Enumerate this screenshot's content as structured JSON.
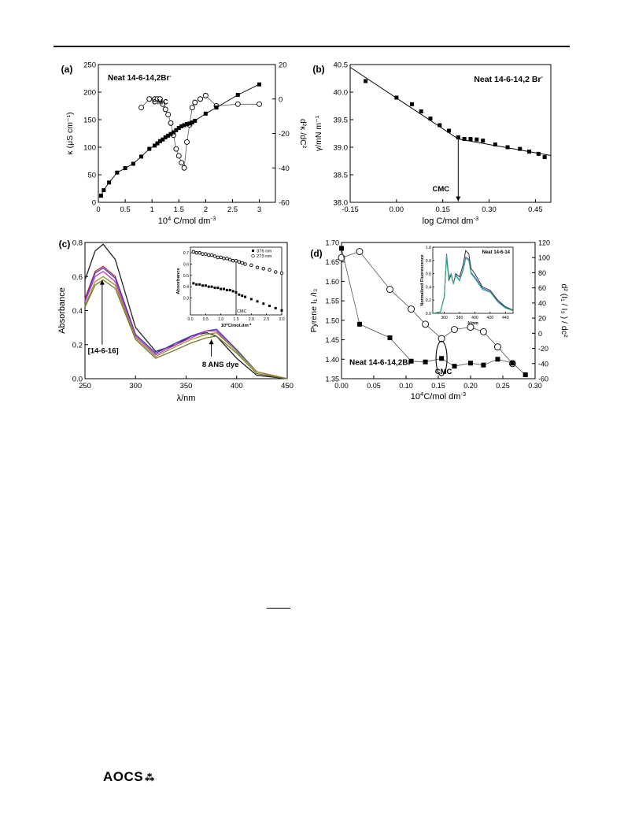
{
  "footer": {
    "logo_text": "AOCS",
    "logo_mark": "⁂"
  },
  "chart_data": [
    {
      "panel": "(a)",
      "type": "line",
      "title": "Neat 14-6-14,2Br",
      "title_sup": "-",
      "annotation": "CMC",
      "xlabel": "10",
      "xlabel_sup": "4",
      "xlabel_rest": " C/mol dm",
      "xlabel_sup2": "-3",
      "ylabel_left": "κ (μS cm⁻¹)",
      "ylabel_right": "d²κ /dC²",
      "xlim": [
        0,
        3.3
      ],
      "ylim_left": [
        0,
        250
      ],
      "ylim_right": [
        -60,
        20
      ],
      "xticks": [
        0.0,
        0.5,
        1.0,
        1.5,
        2.0,
        2.5,
        3.0
      ],
      "yticks_left": [
        0,
        50,
        100,
        150,
        200,
        250
      ],
      "yticks_right": [
        -60,
        -40,
        -20,
        0,
        20
      ],
      "series": [
        {
          "marker": "filled-square",
          "axis": "left",
          "x": [
            0.05,
            0.1,
            0.2,
            0.35,
            0.5,
            0.65,
            0.8,
            0.95,
            1.05,
            1.1,
            1.15,
            1.2,
            1.25,
            1.3,
            1.35,
            1.4,
            1.45,
            1.5,
            1.55,
            1.6,
            1.65,
            1.7,
            1.75,
            1.8,
            2.0,
            2.2,
            2.6,
            3.0
          ],
          "y": [
            12,
            22,
            36,
            54,
            62,
            70,
            83,
            97,
            103,
            107,
            111,
            114,
            118,
            121,
            124,
            127,
            131,
            135,
            138,
            140,
            142,
            143,
            145,
            148,
            161,
            172,
            195,
            214
          ]
        },
        {
          "marker": "open-circle",
          "axis": "right",
          "x": [
            0.8,
            0.95,
            1.05,
            1.1,
            1.15,
            1.2,
            1.25,
            1.3,
            1.35,
            1.4,
            1.45,
            1.5,
            1.55,
            1.6,
            1.65,
            1.7,
            1.75,
            1.8,
            1.9,
            2.0,
            2.2,
            2.6,
            3.0
          ],
          "y": [
            -5,
            0,
            0,
            0,
            0,
            -3,
            -6,
            -9,
            -14,
            -21,
            -29,
            -33,
            -37,
            -40,
            -25,
            -15,
            -5,
            -2,
            0,
            2,
            -4,
            -3,
            -3
          ]
        }
      ]
    },
    {
      "panel": "(b)",
      "type": "scatter",
      "title": "Neat 14-6-14,2 Br",
      "title_sup": "-",
      "annotation": "CMC",
      "xlabel": "log C/mol dm",
      "xlabel_sup": "-3",
      "ylabel": "γ/mN m⁻¹",
      "xlim": [
        -0.15,
        0.5
      ],
      "ylim": [
        38.0,
        40.5
      ],
      "xticks": [
        -0.15,
        0.0,
        0.15,
        0.3,
        0.45
      ],
      "xtick_labels": [
        "-0.15",
        "0.00",
        "0.15",
        "0.30",
        "0.45"
      ],
      "yticks": [
        38.0,
        38.5,
        39.0,
        39.5,
        40.0,
        40.5
      ],
      "cmc_x": 0.2,
      "fit_line_1": [
        [
          -0.15,
          40.45
        ],
        [
          0.2,
          39.15
        ]
      ],
      "fit_line_2": [
        [
          0.2,
          39.15
        ],
        [
          0.5,
          38.85
        ]
      ],
      "series": [
        {
          "marker": "filled-square",
          "x": [
            -0.1,
            0.0,
            0.05,
            0.08,
            0.11,
            0.14,
            0.17,
            0.2,
            0.22,
            0.24,
            0.26,
            0.28,
            0.32,
            0.36,
            0.4,
            0.43,
            0.46,
            0.48
          ],
          "y": [
            40.2,
            39.9,
            39.78,
            39.65,
            39.52,
            39.4,
            39.3,
            39.18,
            39.15,
            39.15,
            39.14,
            39.12,
            39.05,
            39.0,
            38.97,
            38.92,
            38.88,
            38.82
          ]
        }
      ]
    },
    {
      "panel": "(c)",
      "type": "line",
      "xlabel": "λ/nm",
      "ylabel": "Absorbance",
      "xlim": [
        250,
        450
      ],
      "ylim": [
        0.0,
        0.8
      ],
      "xticks": [
        250,
        300,
        350,
        400,
        450
      ],
      "yticks": [
        0.0,
        0.2,
        0.4,
        0.6,
        0.8
      ],
      "annotations": [
        "[14-6-16]",
        "8 ANS dye"
      ],
      "series": [
        {
          "color": "#222222",
          "x": [
            250,
            260,
            268,
            280,
            300,
            320,
            340,
            355,
            370,
            380,
            400,
            420,
            450
          ],
          "y": [
            0.58,
            0.75,
            0.79,
            0.7,
            0.3,
            0.16,
            0.2,
            0.25,
            0.27,
            0.25,
            0.12,
            0.02,
            0.0
          ]
        },
        {
          "color": "#cc2222",
          "x": [
            250,
            260,
            268,
            280,
            300,
            320,
            340,
            355,
            370,
            380,
            400,
            420,
            450
          ],
          "y": [
            0.47,
            0.63,
            0.66,
            0.6,
            0.26,
            0.15,
            0.21,
            0.25,
            0.28,
            0.29,
            0.17,
            0.04,
            0.0
          ]
        },
        {
          "color": "#3344cc",
          "x": [
            250,
            260,
            268,
            280,
            300,
            320,
            340,
            355,
            370,
            380,
            400,
            420,
            450
          ],
          "y": [
            0.46,
            0.62,
            0.65,
            0.59,
            0.26,
            0.15,
            0.21,
            0.25,
            0.28,
            0.29,
            0.17,
            0.04,
            0.0
          ]
        },
        {
          "color": "#cc33cc",
          "x": [
            250,
            260,
            268,
            280,
            300,
            320,
            340,
            355,
            370,
            380,
            400,
            420,
            450
          ],
          "y": [
            0.45,
            0.6,
            0.63,
            0.57,
            0.25,
            0.14,
            0.2,
            0.24,
            0.28,
            0.28,
            0.16,
            0.04,
            0.0
          ]
        },
        {
          "color": "#999922",
          "x": [
            250,
            260,
            268,
            280,
            300,
            320,
            340,
            355,
            370,
            380,
            400,
            420,
            450
          ],
          "y": [
            0.43,
            0.57,
            0.6,
            0.55,
            0.24,
            0.13,
            0.19,
            0.23,
            0.26,
            0.27,
            0.16,
            0.04,
            0.0
          ]
        },
        {
          "color": "#777733",
          "x": [
            250,
            260,
            268,
            280,
            300,
            320,
            340,
            355,
            370,
            380,
            400,
            420,
            450
          ],
          "y": [
            0.42,
            0.55,
            0.58,
            0.53,
            0.23,
            0.12,
            0.17,
            0.21,
            0.24,
            0.25,
            0.15,
            0.03,
            0.0
          ]
        }
      ],
      "inset": {
        "ylabel": "Absorbance",
        "xlabel": "10",
        "xlabel_sup": "4",
        "xlabel_rest": "C/mol.dm",
        "xlabel_sup2": "-3",
        "annotation": "CMC",
        "xlim": [
          0.0,
          3.0
        ],
        "ylim": [
          0.15,
          0.75
        ],
        "xticks": [
          0.0,
          0.5,
          1.0,
          1.5,
          2.0,
          2.5,
          3.0
        ],
        "yticks": [
          0.3,
          0.4,
          0.5,
          0.6,
          0.7
        ],
        "legend": [
          "376 nm",
          "273 nm"
        ],
        "cmc_x": 1.5,
        "series": [
          {
            "name": "376 nm",
            "marker": "filled-square",
            "x": [
              0.1,
              0.2,
              0.3,
              0.4,
              0.5,
              0.6,
              0.7,
              0.8,
              0.9,
              1.0,
              1.1,
              1.2,
              1.3,
              1.4,
              1.5,
              1.6,
              1.7,
              1.8,
              2.0,
              2.2,
              2.4,
              2.6,
              2.8,
              3.0
            ],
            "y": [
              0.43,
              0.42,
              0.42,
              0.41,
              0.41,
              0.4,
              0.4,
              0.39,
              0.39,
              0.38,
              0.38,
              0.37,
              0.37,
              0.36,
              0.35,
              0.33,
              0.32,
              0.31,
              0.29,
              0.27,
              0.25,
              0.23,
              0.21,
              0.19
            ]
          },
          {
            "name": "273 nm",
            "marker": "open-circle",
            "x": [
              0.1,
              0.2,
              0.3,
              0.4,
              0.5,
              0.6,
              0.7,
              0.8,
              0.9,
              1.0,
              1.1,
              1.2,
              1.3,
              1.4,
              1.5,
              1.6,
              1.7,
              1.8,
              2.0,
              2.2,
              2.4,
              2.6,
              2.8,
              3.0
            ],
            "y": [
              0.71,
              0.7,
              0.7,
              0.69,
              0.69,
              0.68,
              0.68,
              0.67,
              0.66,
              0.66,
              0.65,
              0.65,
              0.64,
              0.63,
              0.63,
              0.62,
              0.61,
              0.6,
              0.59,
              0.57,
              0.56,
              0.55,
              0.53,
              0.52
            ]
          }
        ]
      }
    },
    {
      "panel": "(d)",
      "type": "line",
      "title": "Neat 14-6-14,2Br",
      "title_sup": "-",
      "annotation": "CMC",
      "xlabel": "10",
      "xlabel_sup": "4",
      "xlabel_rest": "C/mol dm",
      "xlabel_sup2": "-3",
      "ylabel_left": "Pyrene I₁ /I₃",
      "ylabel_right": "d² (I₁ / I₃ ) / dc²",
      "xlim": [
        0.0,
        0.3
      ],
      "ylim_left": [
        1.35,
        1.7
      ],
      "ylim_right": [
        -60,
        120
      ],
      "xticks": [
        0.0,
        0.05,
        0.1,
        0.15,
        0.2,
        0.25,
        0.3
      ],
      "xtick_labels": [
        "0.00",
        "0.05",
        "0.10",
        "0.15",
        "0.20",
        "0.25",
        "0.30"
      ],
      "yticks_left": [
        1.35,
        1.4,
        1.45,
        1.5,
        1.55,
        1.6,
        1.65,
        1.7
      ],
      "ytick_labels_left": [
        "1.35",
        "1.40",
        "1.45",
        "1.50",
        "1.55",
        "1.60",
        "1.65",
        "1.70"
      ],
      "yticks_right": [
        -60,
        -40,
        -20,
        0,
        20,
        40,
        60,
        80,
        100,
        120
      ],
      "series": [
        {
          "marker": "filled-square",
          "axis": "left",
          "x": [
            0.0,
            0.028,
            0.075,
            0.108,
            0.13,
            0.155,
            0.175,
            0.2,
            0.22,
            0.242,
            0.265,
            0.285
          ],
          "y": [
            1.685,
            1.49,
            1.455,
            1.395,
            1.393,
            1.402,
            1.382,
            1.39,
            1.385,
            1.4,
            1.39,
            1.36
          ]
        },
        {
          "marker": "open-circle",
          "axis": "right",
          "x": [
            0.0,
            0.028,
            0.075,
            0.108,
            0.13,
            0.155,
            0.175,
            0.2,
            0.22,
            0.242,
            0.265
          ],
          "y": [
            100,
            108,
            58,
            32,
            12,
            -7,
            5,
            8,
            2,
            -18,
            -40
          ]
        }
      ],
      "inset": {
        "title": "Neat 14-6-14",
        "ylabel": "Normalized Fluorescence",
        "xlabel": "λ/nm",
        "xlim": [
          345,
          450
        ],
        "ylim": [
          0.0,
          1.0
        ],
        "xticks": [
          360,
          380,
          400,
          420,
          440
        ],
        "yticks": [
          0.0,
          0.2,
          0.4,
          0.6,
          0.8,
          1.0
        ],
        "ytick_labels": [
          "0.0",
          "0.2",
          "0.4",
          "0.6",
          "0.8",
          "1.0"
        ],
        "series": [
          {
            "color": "#333333",
            "x": [
              345,
              355,
              360,
              363,
              366,
              369,
              372,
              375,
              380,
              385,
              388,
              392,
              395,
              400,
              410,
              420,
              430,
              440,
              450
            ],
            "y": [
              0.0,
              0.02,
              0.25,
              0.85,
              0.5,
              0.58,
              0.45,
              0.6,
              0.55,
              0.75,
              0.95,
              0.9,
              0.68,
              0.6,
              0.4,
              0.35,
              0.2,
              0.1,
              0.05
            ]
          },
          {
            "color": "#3355cc",
            "x": [
              345,
              355,
              360,
              363,
              366,
              369,
              372,
              375,
              380,
              385,
              388,
              392,
              395,
              400,
              410,
              420,
              430,
              440,
              450
            ],
            "y": [
              0.0,
              0.02,
              0.25,
              0.9,
              0.55,
              0.6,
              0.45,
              0.58,
              0.5,
              0.68,
              0.85,
              0.82,
              0.62,
              0.55,
              0.38,
              0.33,
              0.18,
              0.09,
              0.04
            ]
          },
          {
            "color": "#33aa77",
            "x": [
              345,
              355,
              360,
              363,
              366,
              369,
              372,
              375,
              380,
              385,
              388,
              392,
              395,
              400,
              410,
              420,
              430,
              440,
              450
            ],
            "y": [
              0.0,
              0.02,
              0.25,
              0.88,
              0.52,
              0.6,
              0.44,
              0.57,
              0.49,
              0.66,
              0.83,
              0.8,
              0.6,
              0.53,
              0.36,
              0.32,
              0.17,
              0.08,
              0.04
            ]
          }
        ]
      }
    }
  ]
}
